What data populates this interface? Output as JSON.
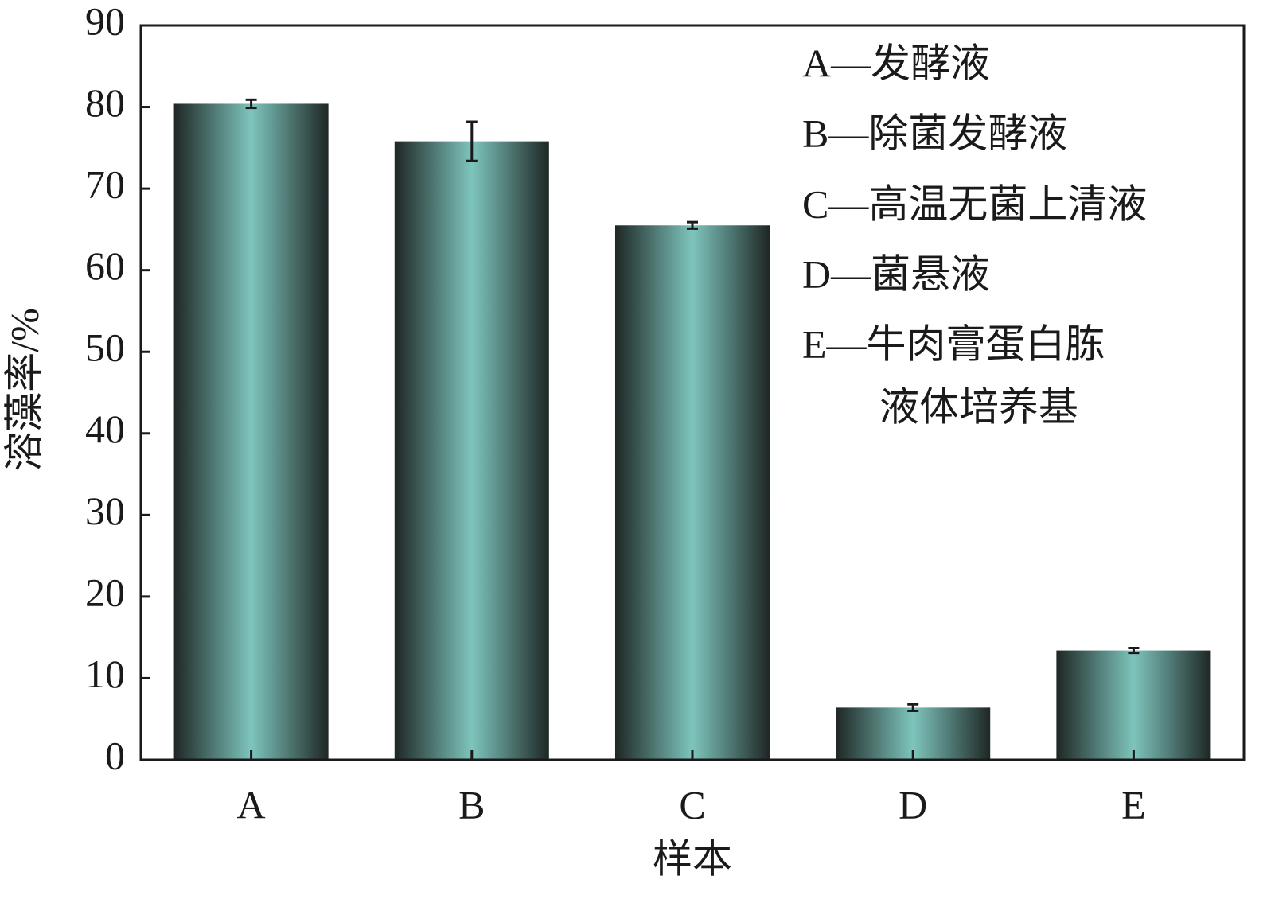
{
  "chart_data": {
    "type": "bar",
    "xlabel": "样本",
    "ylabel": "溶藻率/%",
    "categories": [
      "A",
      "B",
      "C",
      "D",
      "E"
    ],
    "values": [
      80.4,
      75.8,
      65.5,
      6.4,
      13.4
    ],
    "errors": [
      0.5,
      2.4,
      0.4,
      0.4,
      0.3
    ],
    "color": "#7ec5bd",
    "edge_color": "#1e2725",
    "ylim": [
      0,
      90
    ],
    "yticks": [
      0,
      10,
      20,
      30,
      40,
      50,
      60,
      70,
      80,
      90
    ],
    "legend_lines": [
      "A—发酵液",
      "B—除菌发酵液",
      "C—高温无菌上清液",
      "D—菌悬液",
      "E—牛肉膏蛋白胨",
      "液体培养基"
    ]
  }
}
